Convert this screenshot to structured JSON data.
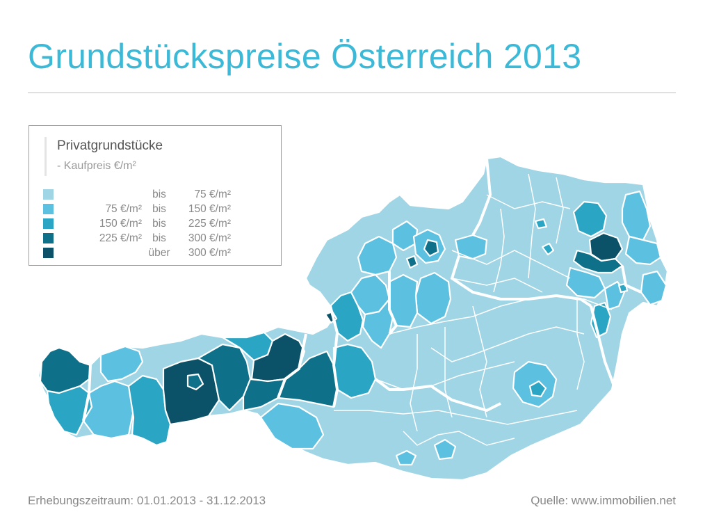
{
  "title": "Grundstückspreise Österreich 2013",
  "legend": {
    "title": "Privatgrundstücke",
    "subtitle": "- Kaufpreis €/m²",
    "classes": [
      {
        "from": "",
        "op": "bis",
        "to": "75 €/m²",
        "color": "#9fd5e4"
      },
      {
        "from": "75 €/m²",
        "op": "bis",
        "to": "150 €/m²",
        "color": "#5cc0e0"
      },
      {
        "from": "150 €/m²",
        "op": "bis",
        "to": "225 €/m²",
        "color": "#2aa5c3"
      },
      {
        "from": "225 €/m²",
        "op": "bis",
        "to": "300 €/m²",
        "color": "#0f7089"
      },
      {
        "from": "",
        "op": "über",
        "to": "300 €/m²",
        "color": "#0b5167"
      }
    ]
  },
  "map": {
    "region": "Österreich",
    "colors": {
      "c1": "#9fd5e4",
      "c2": "#5cc0e0",
      "c3": "#2aa5c3",
      "c4": "#0f7089",
      "c5": "#0b5167",
      "border": "#ffffff"
    }
  },
  "footer": {
    "period": "Erhebungszeitraum: 01.01.2013 - 31.12.2013",
    "source": "Quelle: www.immobilien.net"
  }
}
